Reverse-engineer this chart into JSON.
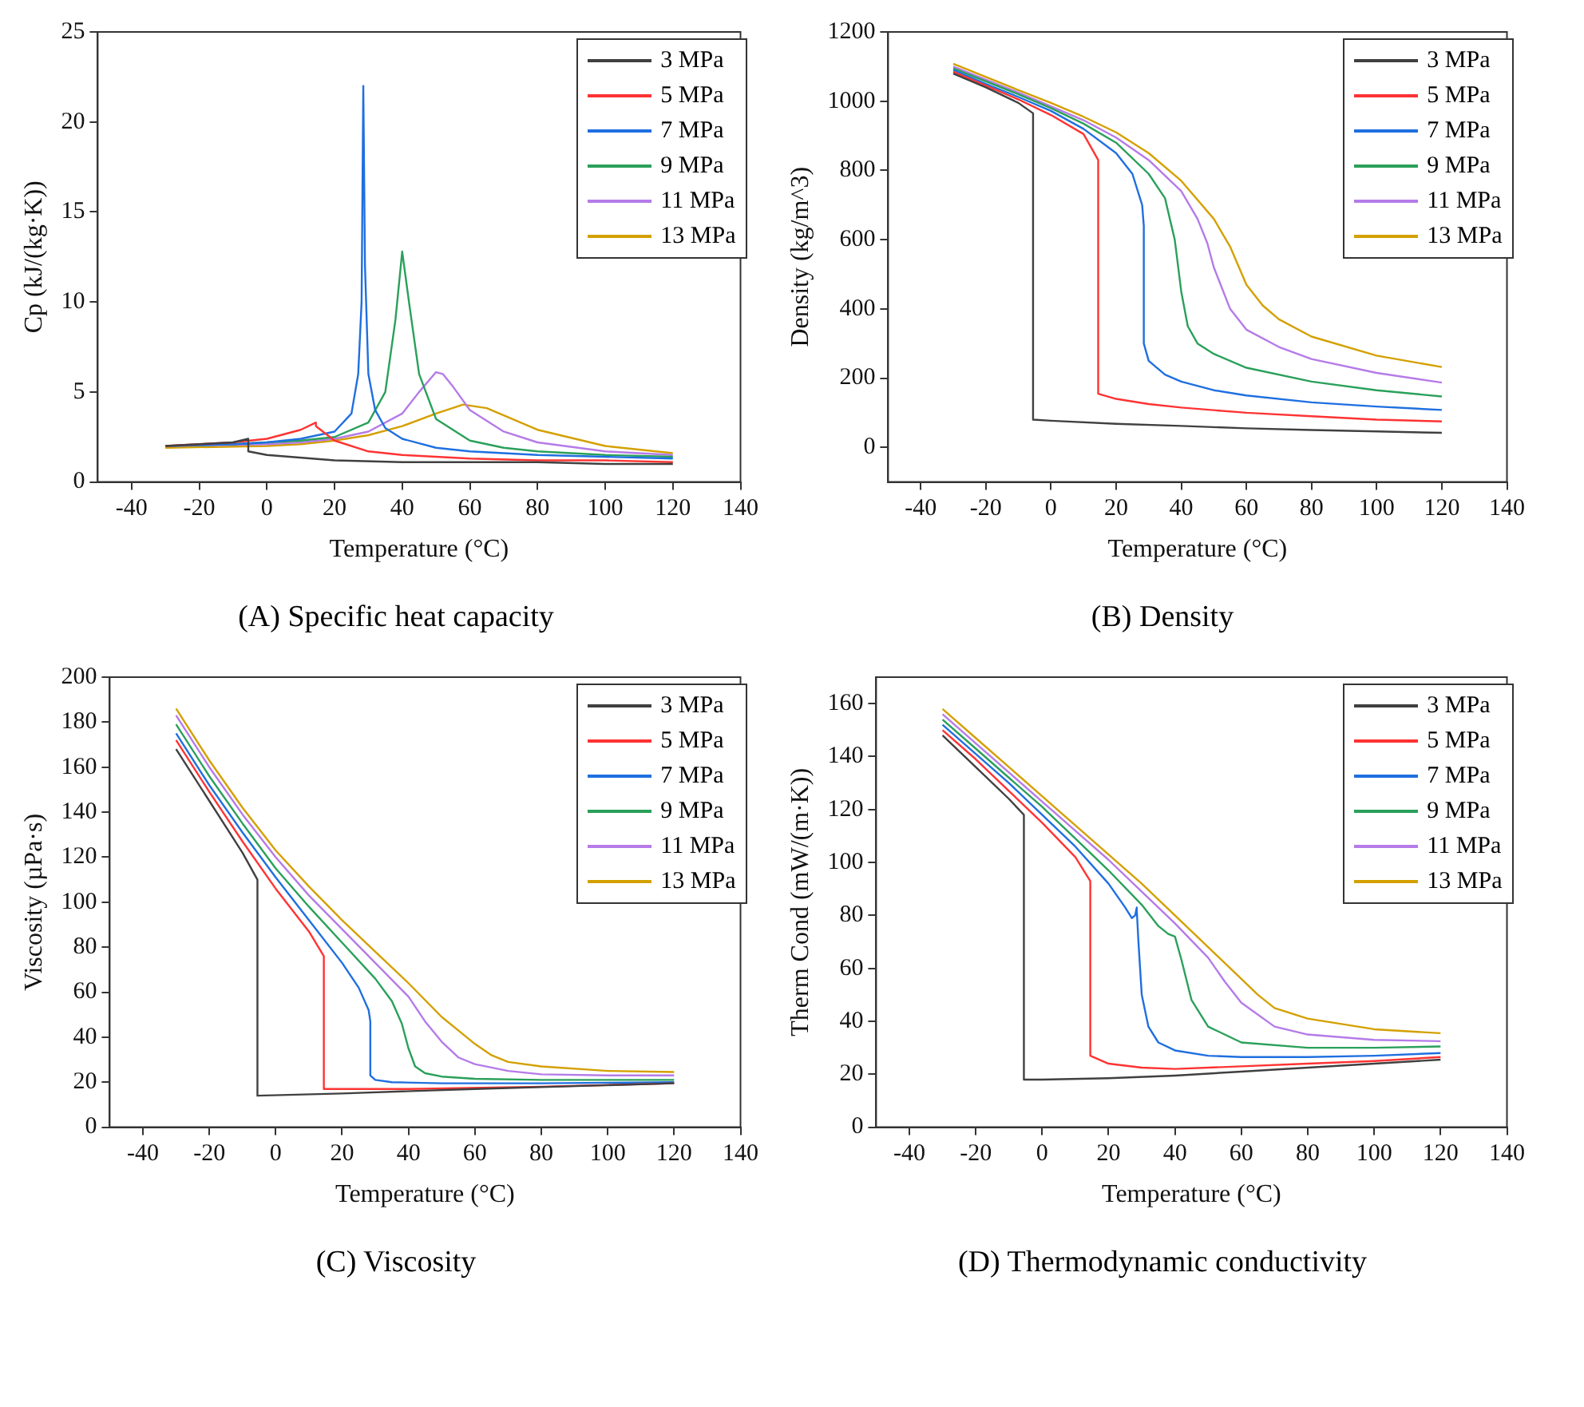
{
  "chart_data": [
    {
      "type": "line",
      "annotations": [
        "(A) Specific heat capacity"
      ],
      "xlabel": "Temperature (°C)",
      "ylabel": "Cp (kJ/(kg·K))",
      "xlim": [
        -50,
        140
      ],
      "xticks": [
        -40,
        -20,
        0,
        20,
        40,
        60,
        80,
        100,
        120,
        140
      ],
      "ylim": [
        0,
        25
      ],
      "yticks": [
        0,
        5,
        10,
        15,
        20,
        25
      ],
      "grid": false,
      "legend": "top right",
      "series": [
        {
          "name": "3 MPa",
          "color": "#404040",
          "x": [
            -30,
            -20,
            -10,
            -5.5,
            -5.5,
            0,
            20,
            40,
            60,
            80,
            100,
            120
          ],
          "values": [
            2.0,
            2.1,
            2.2,
            2.4,
            1.7,
            1.5,
            1.2,
            1.1,
            1.1,
            1.1,
            1.0,
            1.0
          ]
        },
        {
          "name": "5 MPa",
          "color": "#ff3333",
          "x": [
            -30,
            -20,
            -10,
            0,
            10,
            14.5,
            14.5,
            20,
            30,
            40,
            60,
            80,
            100,
            120
          ],
          "values": [
            2.0,
            2.1,
            2.2,
            2.4,
            2.9,
            3.3,
            3.1,
            2.3,
            1.7,
            1.5,
            1.3,
            1.2,
            1.2,
            1.1
          ]
        },
        {
          "name": "7 MPa",
          "color": "#1f6fe0",
          "x": [
            -30,
            -10,
            0,
            10,
            20,
            25,
            27,
            28,
            28.5,
            29,
            30,
            32,
            35,
            40,
            50,
            60,
            80,
            100,
            120
          ],
          "values": [
            2.0,
            2.1,
            2.2,
            2.4,
            2.8,
            3.8,
            6,
            10,
            22,
            12,
            6,
            4,
            3,
            2.4,
            1.9,
            1.7,
            1.5,
            1.4,
            1.3
          ]
        },
        {
          "name": "9 MPa",
          "color": "#2aa05a",
          "x": [
            -30,
            -10,
            0,
            10,
            20,
            30,
            35,
            38,
            40,
            42,
            45,
            50,
            60,
            70,
            80,
            100,
            120
          ],
          "values": [
            2.0,
            2.1,
            2.2,
            2.3,
            2.5,
            3.3,
            5,
            9,
            12.8,
            10,
            6,
            3.5,
            2.3,
            1.9,
            1.7,
            1.5,
            1.4
          ]
        },
        {
          "name": "11 MPa",
          "color": "#b57be8",
          "x": [
            -30,
            0,
            10,
            20,
            30,
            40,
            45,
            50,
            52,
            55,
            60,
            70,
            80,
            100,
            120
          ],
          "values": [
            2.0,
            2.1,
            2.2,
            2.4,
            2.8,
            3.8,
            5,
            6.1,
            6,
            5.3,
            4,
            2.8,
            2.2,
            1.7,
            1.5
          ]
        },
        {
          "name": "13 MPa",
          "color": "#d4a000",
          "x": [
            -30,
            0,
            10,
            20,
            30,
            40,
            50,
            58,
            65,
            70,
            80,
            100,
            120
          ],
          "values": [
            1.9,
            2.0,
            2.1,
            2.3,
            2.6,
            3.1,
            3.8,
            4.3,
            4.1,
            3.7,
            2.9,
            2.0,
            1.6
          ]
        }
      ]
    },
    {
      "type": "line",
      "annotations": [
        "(B) Density"
      ],
      "xlabel": "Temperature (°C)",
      "ylabel": "Density (kg/m^3)",
      "xlim": [
        -50,
        140
      ],
      "xticks": [
        -40,
        -20,
        0,
        20,
        40,
        60,
        80,
        100,
        120,
        140
      ],
      "ylim": [
        -100,
        1200
      ],
      "yticks": [
        0,
        200,
        400,
        600,
        800,
        1000,
        1200
      ],
      "grid": false,
      "legend": "top right",
      "series": [
        {
          "name": "3 MPa",
          "color": "#404040",
          "x": [
            -30,
            -20,
            -10,
            -5.5,
            -5.5,
            0,
            20,
            40,
            60,
            80,
            100,
            120
          ],
          "values": [
            1080,
            1040,
            995,
            965,
            80,
            77,
            68,
            62,
            55,
            50,
            46,
            42
          ]
        },
        {
          "name": "5 MPa",
          "color": "#ff3333",
          "x": [
            -30,
            -20,
            -10,
            0,
            10,
            14.5,
            14.5,
            20,
            30,
            40,
            60,
            80,
            100,
            120
          ],
          "values": [
            1085,
            1045,
            1005,
            960,
            905,
            830,
            155,
            140,
            125,
            115,
            100,
            90,
            80,
            75
          ]
        },
        {
          "name": "7 MPa",
          "color": "#1f6fe0",
          "x": [
            -30,
            -20,
            -10,
            0,
            10,
            20,
            25,
            28,
            28.5,
            28.5,
            30,
            35,
            40,
            50,
            60,
            80,
            100,
            120
          ],
          "values": [
            1090,
            1050,
            1012,
            972,
            920,
            850,
            790,
            700,
            640,
            300,
            250,
            210,
            190,
            165,
            150,
            130,
            118,
            108
          ]
        },
        {
          "name": "9 MPa",
          "color": "#2aa05a",
          "x": [
            -30,
            -10,
            0,
            10,
            20,
            30,
            35,
            38,
            40,
            42,
            45,
            50,
            60,
            80,
            100,
            120
          ],
          "values": [
            1095,
            1020,
            980,
            935,
            880,
            790,
            720,
            600,
            450,
            350,
            300,
            270,
            230,
            190,
            165,
            147
          ]
        },
        {
          "name": "11 MPa",
          "color": "#b57be8",
          "x": [
            -30,
            -10,
            0,
            10,
            20,
            30,
            40,
            45,
            48,
            50,
            55,
            60,
            70,
            80,
            100,
            120
          ],
          "values": [
            1100,
            1025,
            985,
            945,
            895,
            830,
            740,
            660,
            590,
            520,
            400,
            340,
            290,
            255,
            215,
            187
          ]
        },
        {
          "name": "13 MPa",
          "color": "#d4a000",
          "x": [
            -30,
            -10,
            0,
            10,
            20,
            30,
            40,
            50,
            55,
            60,
            65,
            70,
            80,
            100,
            120
          ],
          "values": [
            1108,
            1032,
            995,
            955,
            910,
            850,
            770,
            660,
            580,
            470,
            410,
            370,
            320,
            265,
            232
          ]
        }
      ]
    },
    {
      "type": "line",
      "annotations": [
        "(C) Viscosity"
      ],
      "xlabel": "Temperature (°C)",
      "ylabel": "Viscosity (µPa·s)",
      "xlim": [
        -50,
        140
      ],
      "xticks": [
        -40,
        -20,
        0,
        20,
        40,
        60,
        80,
        100,
        120,
        140
      ],
      "ylim": [
        0,
        200
      ],
      "yticks": [
        0,
        20,
        40,
        60,
        80,
        100,
        120,
        140,
        160,
        180,
        200
      ],
      "grid": false,
      "legend": "top right",
      "series": [
        {
          "name": "3 MPa",
          "color": "#404040",
          "x": [
            -30,
            -20,
            -10,
            -5.5,
            -5.5,
            20,
            60,
            120
          ],
          "values": [
            168,
            145,
            122,
            110,
            14,
            15,
            17,
            19.5
          ]
        },
        {
          "name": "5 MPa",
          "color": "#ff3333",
          "x": [
            -30,
            -20,
            -10,
            0,
            10,
            14.5,
            14.5,
            40,
            80,
            120
          ],
          "values": [
            172,
            149,
            127,
            106,
            87,
            76,
            17,
            17,
            18,
            19.5
          ]
        },
        {
          "name": "7 MPa",
          "color": "#1f6fe0",
          "x": [
            -30,
            -20,
            -10,
            0,
            10,
            20,
            25,
            28,
            28.5,
            28.5,
            30,
            35,
            50,
            80,
            120
          ],
          "values": [
            175,
            152,
            131,
            111,
            92,
            73,
            62,
            52,
            47,
            23,
            21,
            20,
            19.5,
            19.5,
            20
          ]
        },
        {
          "name": "9 MPa",
          "color": "#2aa05a",
          "x": [
            -30,
            -20,
            -10,
            0,
            10,
            20,
            30,
            35,
            38,
            40,
            42,
            45,
            50,
            60,
            80,
            120
          ],
          "values": [
            179,
            156,
            135,
            115,
            98,
            82,
            66,
            56,
            46,
            35,
            27,
            24,
            22.5,
            21.5,
            21,
            21
          ]
        },
        {
          "name": "11 MPa",
          "color": "#b57be8",
          "x": [
            -30,
            -20,
            -10,
            0,
            10,
            20,
            30,
            40,
            45,
            50,
            55,
            60,
            70,
            80,
            100,
            120
          ],
          "values": [
            183,
            160,
            139,
            120,
            103,
            88,
            73,
            58,
            47,
            38,
            31,
            28,
            25,
            23.5,
            23,
            23
          ]
        },
        {
          "name": "13 MPa",
          "color": "#d4a000",
          "x": [
            -30,
            -20,
            -10,
            0,
            10,
            20,
            30,
            40,
            50,
            55,
            60,
            65,
            70,
            80,
            100,
            120
          ],
          "values": [
            186,
            163,
            142,
            123,
            107,
            92,
            78,
            64,
            49,
            43,
            37,
            32,
            29,
            27,
            25,
            24.5
          ]
        }
      ]
    },
    {
      "type": "line",
      "annotations": [
        "(D) Thermodynamic conductivity"
      ],
      "xlabel": "Temperature (°C)",
      "ylabel": "Therm Cond (mW/(m·K))",
      "xlim": [
        -50,
        140
      ],
      "xticks": [
        -40,
        -20,
        0,
        20,
        40,
        60,
        80,
        100,
        120,
        140
      ],
      "ylim": [
        0,
        170
      ],
      "yticks": [
        0,
        20,
        40,
        60,
        80,
        100,
        120,
        140,
        160
      ],
      "grid": false,
      "legend": "top right",
      "series": [
        {
          "name": "3 MPa",
          "color": "#404040",
          "x": [
            -30,
            -20,
            -10,
            -5.5,
            -5.5,
            0,
            20,
            40,
            60,
            80,
            100,
            120
          ],
          "values": [
            148,
            136,
            124,
            118,
            18,
            18,
            18.5,
            19.5,
            21,
            22.5,
            24,
            25.5
          ]
        },
        {
          "name": "5 MPa",
          "color": "#ff3333",
          "x": [
            -30,
            -20,
            -10,
            0,
            10,
            14.5,
            14.5,
            20,
            30,
            40,
            60,
            80,
            100,
            120
          ],
          "values": [
            150,
            139,
            127,
            115,
            102,
            93,
            27,
            24,
            22.5,
            22,
            23,
            24,
            25,
            26.5
          ]
        },
        {
          "name": "7 MPa",
          "color": "#1f6fe0",
          "x": [
            -30,
            -20,
            -10,
            0,
            10,
            20,
            25,
            27,
            28,
            28.5,
            28.5,
            29,
            30,
            32,
            35,
            40,
            50,
            60,
            80,
            100,
            120
          ],
          "values": [
            152,
            141,
            130,
            118,
            106,
            92,
            83,
            79,
            80,
            83,
            82,
            70,
            50,
            38,
            32,
            29,
            27,
            26.5,
            26.5,
            27,
            28
          ]
        },
        {
          "name": "9 MPa",
          "color": "#2aa05a",
          "x": [
            -30,
            -20,
            -10,
            0,
            10,
            20,
            30,
            35,
            38,
            40,
            42,
            45,
            50,
            60,
            80,
            100,
            120
          ],
          "values": [
            154,
            143,
            132,
            121,
            109,
            97,
            84,
            76,
            73,
            72,
            63,
            48,
            38,
            32,
            30,
            30,
            30.5
          ]
        },
        {
          "name": "11 MPa",
          "color": "#b57be8",
          "x": [
            -30,
            -20,
            -10,
            0,
            10,
            20,
            30,
            40,
            50,
            55,
            60,
            70,
            80,
            100,
            120
          ],
          "values": [
            156,
            145,
            134,
            123,
            112,
            101,
            89,
            77,
            64,
            55,
            47,
            38,
            35,
            33,
            32.5
          ]
        },
        {
          "name": "13 MPa",
          "color": "#d4a000",
          "x": [
            -30,
            -20,
            -10,
            0,
            10,
            20,
            30,
            40,
            50,
            60,
            65,
            70,
            80,
            100,
            120
          ],
          "values": [
            158,
            147,
            136,
            125,
            114,
            103,
            92,
            80,
            68,
            56,
            50,
            45,
            41,
            37,
            35.5
          ]
        }
      ]
    }
  ]
}
